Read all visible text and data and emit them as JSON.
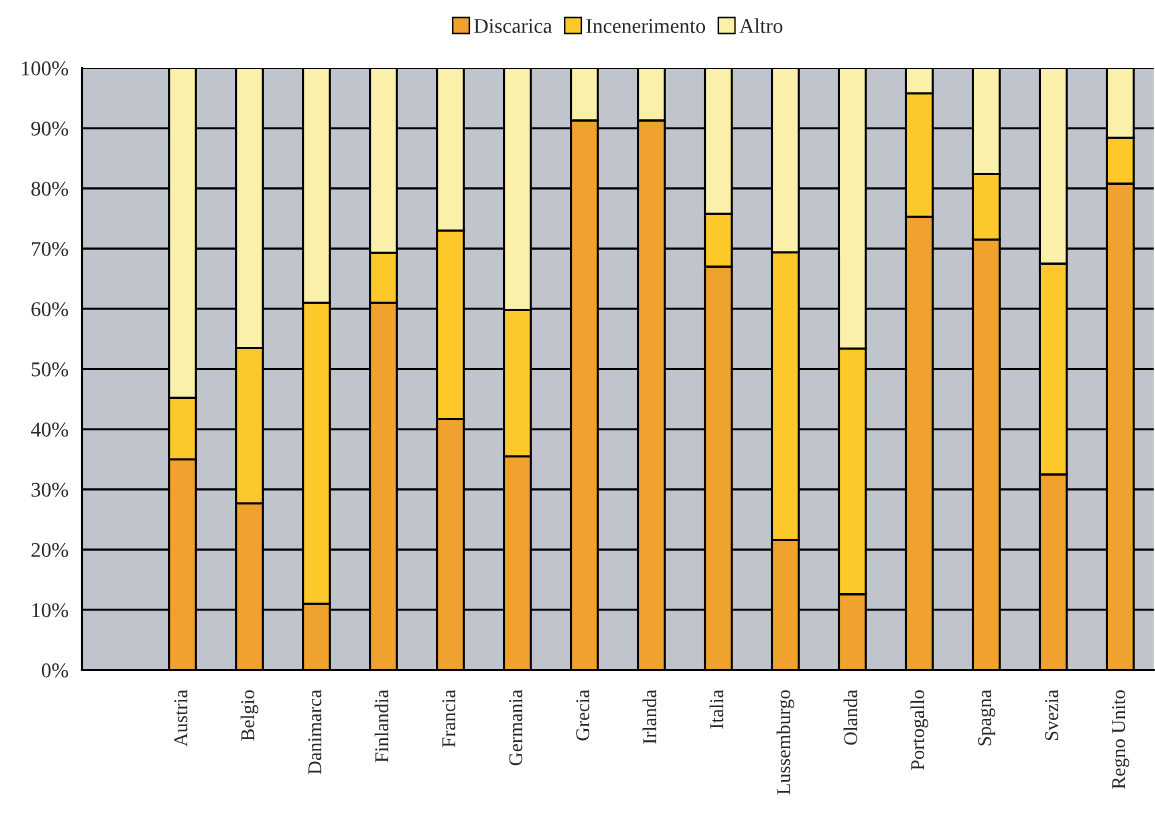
{
  "chart_data": {
    "type": "bar",
    "stacked": true,
    "categories": [
      null,
      "Austria",
      "Belgio",
      "Danimarca",
      "Finlandia",
      "Francia",
      "Germania",
      "Grecia",
      "Irlanda",
      "Italia",
      "Lussemburgo",
      "Olanda",
      "Portogallo",
      "Spagna",
      "Svezia",
      "Regno Unito"
    ],
    "series": [
      {
        "name": "Discarica",
        "color": "#f0a22e",
        "values": [
          null,
          35,
          27.7,
          11,
          61,
          41.7,
          35.5,
          91.3,
          91.3,
          67,
          21.6,
          12.6,
          75.3,
          71.5,
          32.5,
          80.8
        ]
      },
      {
        "name": "Incenerimento",
        "color": "#fcc82a",
        "values": [
          null,
          10.2,
          25.8,
          50,
          8.3,
          31.3,
          24.3,
          null,
          null,
          8.8,
          47.8,
          40.8,
          20.5,
          10.9,
          35,
          7.6
        ]
      },
      {
        "name": "Altro",
        "color": "#faf0aa",
        "values": [
          null,
          54.8,
          46.5,
          39,
          30.7,
          27,
          40.2,
          8.7,
          8.7,
          24.2,
          30.6,
          46.6,
          4.2,
          17.6,
          32.5,
          11.6
        ]
      }
    ],
    "ylim": [
      0,
      100
    ],
    "yticks": [
      {
        "value": 0,
        "label": "0%"
      },
      {
        "value": 10,
        "label": "10%"
      },
      {
        "value": 20,
        "label": "20%"
      },
      {
        "value": 30,
        "label": "30%"
      },
      {
        "value": 40,
        "label": "40%"
      },
      {
        "value": 50,
        "label": "50%"
      },
      {
        "value": 60,
        "label": "60%"
      },
      {
        "value": 70,
        "label": "70%"
      },
      {
        "value": 80,
        "label": "80%"
      },
      {
        "value": 90,
        "label": "90%"
      },
      {
        "value": 100,
        "label": "100%"
      }
    ],
    "grid": "y",
    "legend": "top"
  }
}
